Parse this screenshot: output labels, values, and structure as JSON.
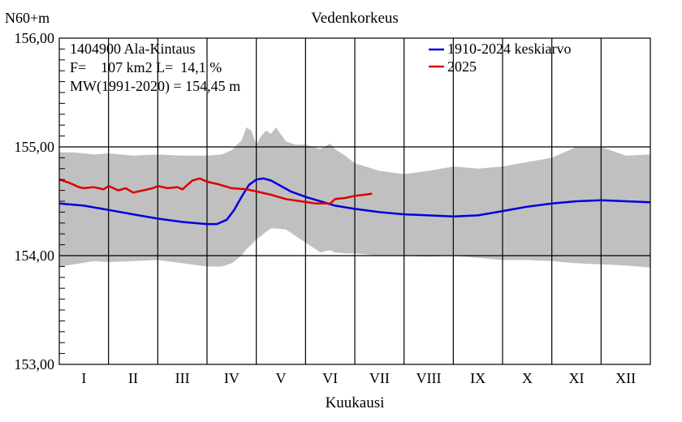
{
  "chart_data": {
    "type": "line",
    "title": "Vedenkorkeus",
    "ylabel": "N60+m",
    "xlabel": "Kuukausi",
    "ylim": [
      153.0,
      156.0
    ],
    "y_ticks": [
      "153,00",
      "154,00",
      "155,00",
      "156,00"
    ],
    "y_tick_values": [
      153.0,
      154.0,
      155.0,
      156.0
    ],
    "months": [
      "I",
      "II",
      "III",
      "IV",
      "V",
      "VI",
      "VII",
      "VIII",
      "IX",
      "X",
      "XI",
      "XII"
    ],
    "grid": true,
    "legend_position": "top-right",
    "info_lines": [
      "1404900 Ala-Kintaus",
      "F=    107 km2 L=  14,1 %",
      "MW(1991-2020) = 154,45 m"
    ],
    "series": [
      {
        "name": "1910-2024 keskiarvo",
        "color": "#0000dd",
        "x": [
          0,
          0.5,
          1,
          1.5,
          2,
          2.5,
          3,
          3.2,
          3.4,
          3.55,
          3.7,
          3.85,
          4.0,
          4.15,
          4.3,
          4.5,
          4.7,
          5.0,
          5.3,
          5.6,
          6.0,
          6.5,
          7.0,
          7.5,
          8.0,
          8.5,
          9.0,
          9.5,
          10.0,
          10.5,
          11.0,
          11.5,
          12.0
        ],
        "values": [
          154.48,
          154.46,
          154.42,
          154.38,
          154.34,
          154.31,
          154.29,
          154.29,
          154.33,
          154.42,
          154.54,
          154.65,
          154.7,
          154.71,
          154.69,
          154.64,
          154.59,
          154.54,
          154.5,
          154.46,
          154.43,
          154.4,
          154.38,
          154.37,
          154.36,
          154.37,
          154.41,
          154.45,
          154.48,
          154.5,
          154.51,
          154.5,
          154.49
        ]
      },
      {
        "name": "2025",
        "color": "#dd0000",
        "x": [
          0,
          0.2,
          0.4,
          0.5,
          0.7,
          0.9,
          1.0,
          1.2,
          1.35,
          1.5,
          1.7,
          1.9,
          2.0,
          2.2,
          2.4,
          2.5,
          2.7,
          2.85,
          3.0,
          3.2,
          3.5,
          3.8,
          4.0,
          4.3,
          4.6,
          4.9,
          5.2,
          5.5,
          5.6,
          5.8,
          6.0,
          6.2,
          6.35
        ],
        "values": [
          154.7,
          154.67,
          154.63,
          154.62,
          154.63,
          154.61,
          154.64,
          154.6,
          154.62,
          154.58,
          154.6,
          154.62,
          154.64,
          154.62,
          154.63,
          154.61,
          154.69,
          154.71,
          154.68,
          154.66,
          154.62,
          154.61,
          154.59,
          154.56,
          154.52,
          154.5,
          154.48,
          154.48,
          154.52,
          154.53,
          154.55,
          154.56,
          154.57
        ]
      }
    ],
    "range_band": {
      "x": [
        0,
        0.3,
        0.7,
        1.0,
        1.5,
        2.0,
        2.5,
        3.0,
        3.3,
        3.5,
        3.7,
        3.8,
        3.9,
        4.0,
        4.1,
        4.2,
        4.3,
        4.4,
        4.6,
        4.8,
        5.0,
        5.3,
        5.5,
        5.6,
        5.8,
        6.0,
        6.5,
        7.0,
        7.5,
        8.0,
        8.5,
        9.0,
        9.5,
        10.0,
        10.5,
        11.0,
        11.5,
        12.0
      ],
      "upper": [
        154.95,
        154.95,
        154.93,
        154.94,
        154.92,
        154.93,
        154.92,
        154.92,
        154.93,
        154.97,
        155.06,
        155.18,
        155.15,
        155.02,
        155.1,
        155.15,
        155.12,
        155.18,
        155.05,
        155.02,
        155.02,
        154.98,
        155.03,
        154.98,
        154.92,
        154.85,
        154.78,
        154.75,
        154.78,
        154.82,
        154.8,
        154.82,
        154.86,
        154.9,
        155.0,
        155.0,
        154.92,
        154.93
      ],
      "lower": [
        153.9,
        153.92,
        153.95,
        153.94,
        153.95,
        153.96,
        153.93,
        153.9,
        153.9,
        153.93,
        154.0,
        154.06,
        154.1,
        154.15,
        154.18,
        154.22,
        154.25,
        154.25,
        154.24,
        154.18,
        154.12,
        154.03,
        154.05,
        154.03,
        154.02,
        154.02,
        154.0,
        154.0,
        153.99,
        154.0,
        153.98,
        153.96,
        153.96,
        153.95,
        153.93,
        153.92,
        153.91,
        153.89
      ]
    },
    "band_color": "#c0c0c0"
  }
}
